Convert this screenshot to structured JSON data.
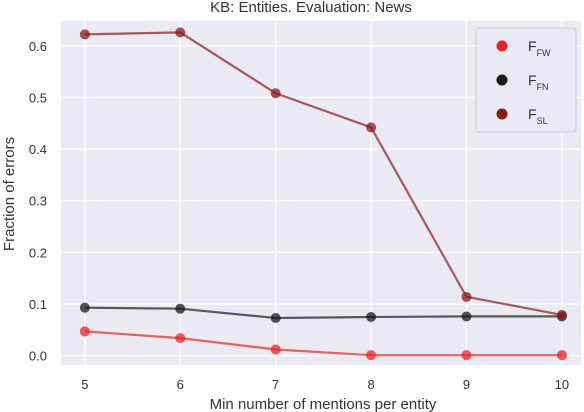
{
  "chart_data": {
    "type": "line",
    "title": "KB: Entities. Evaluation: News",
    "xlabel": "Min number of mentions per entity",
    "ylabel": "Fraction of errors",
    "x": [
      5,
      6,
      7,
      8,
      9,
      10
    ],
    "x_ticks": [
      "5",
      "6",
      "7",
      "8",
      "9",
      "10"
    ],
    "y_ticks": [
      "0.0",
      "0.1",
      "0.2",
      "0.3",
      "0.4",
      "0.5",
      "0.6"
    ],
    "xlim": [
      4.75,
      10.2
    ],
    "ylim": [
      -0.018,
      0.648
    ],
    "grid": true,
    "legend_position": "top-right",
    "background": "#eaeaf2",
    "series": [
      {
        "name": "F",
        "sub": "FW",
        "color": "#ee2222",
        "values": [
          0.047,
          0.034,
          0.012,
          0.001,
          0.001,
          0.001
        ]
      },
      {
        "name": "F",
        "sub": "FN",
        "color": "#1a1a1a",
        "values": [
          0.093,
          0.091,
          0.073,
          0.075,
          0.076,
          0.076
        ]
      },
      {
        "name": "F",
        "sub": "SL",
        "color": "#8b1a1a",
        "values": [
          0.622,
          0.626,
          0.508,
          0.442,
          0.114,
          0.079
        ]
      }
    ]
  }
}
